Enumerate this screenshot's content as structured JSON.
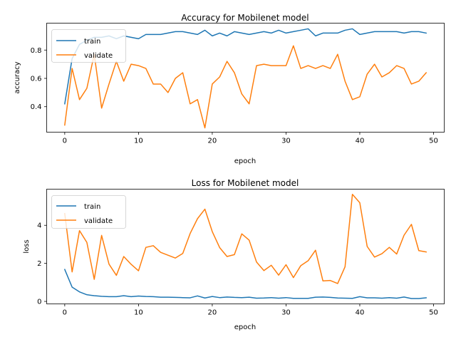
{
  "chart_data": [
    {
      "type": "line",
      "title": "Accuracy for Mobilenet model",
      "xlabel": "epoch",
      "ylabel": "accuracy",
      "xlim": [
        -2.45,
        51.45
      ],
      "ylim": [
        0.22,
        0.99
      ],
      "xticks": [
        0,
        10,
        20,
        30,
        40,
        50
      ],
      "yticks": [
        0.4,
        0.6,
        0.8
      ],
      "ytick_labels": [
        "0.4",
        "0.6",
        "0.8"
      ],
      "legend": "top-left",
      "x": [
        0,
        1,
        2,
        3,
        4,
        5,
        6,
        7,
        8,
        9,
        10,
        11,
        12,
        13,
        14,
        15,
        16,
        17,
        18,
        19,
        20,
        21,
        22,
        23,
        24,
        25,
        26,
        27,
        28,
        29,
        30,
        31,
        32,
        33,
        34,
        35,
        36,
        37,
        38,
        39,
        40,
        41,
        42,
        43,
        44,
        45,
        46,
        47,
        48,
        49
      ],
      "series": [
        {
          "name": "train",
          "color": "#1f77b4",
          "values": [
            0.42,
            0.74,
            0.84,
            0.87,
            0.89,
            0.89,
            0.9,
            0.88,
            0.9,
            0.89,
            0.88,
            0.91,
            0.91,
            0.91,
            0.92,
            0.93,
            0.93,
            0.92,
            0.91,
            0.94,
            0.9,
            0.92,
            0.9,
            0.93,
            0.92,
            0.91,
            0.92,
            0.93,
            0.92,
            0.94,
            0.92,
            0.93,
            0.94,
            0.95,
            0.9,
            0.92,
            0.92,
            0.92,
            0.94,
            0.95,
            0.91,
            0.92,
            0.93,
            0.93,
            0.93,
            0.93,
            0.92,
            0.93,
            0.93,
            0.92
          ]
        },
        {
          "name": "validate",
          "color": "#ff7f0e",
          "values": [
            0.27,
            0.67,
            0.45,
            0.53,
            0.77,
            0.39,
            0.56,
            0.72,
            0.58,
            0.7,
            0.69,
            0.67,
            0.56,
            0.56,
            0.5,
            0.6,
            0.64,
            0.42,
            0.45,
            0.25,
            0.56,
            0.61,
            0.72,
            0.64,
            0.49,
            0.42,
            0.69,
            0.7,
            0.69,
            0.69,
            0.69,
            0.83,
            0.67,
            0.69,
            0.67,
            0.69,
            0.67,
            0.77,
            0.58,
            0.45,
            0.47,
            0.63,
            0.7,
            0.61,
            0.64,
            0.69,
            0.67,
            0.56,
            0.58,
            0.64
          ]
        }
      ]
    },
    {
      "type": "line",
      "title": "Loss for Mobilenet model",
      "xlabel": "epoch",
      "ylabel": "loss",
      "xlim": [
        -2.45,
        51.45
      ],
      "ylim": [
        -0.13,
        5.9
      ],
      "xticks": [
        0,
        10,
        20,
        30,
        40,
        50
      ],
      "yticks": [
        0,
        2,
        4
      ],
      "ytick_labels": [
        "0",
        "2",
        "4"
      ],
      "legend": "top-left",
      "x": [
        0,
        1,
        2,
        3,
        4,
        5,
        6,
        7,
        8,
        9,
        10,
        11,
        12,
        13,
        14,
        15,
        16,
        17,
        18,
        19,
        20,
        21,
        22,
        23,
        24,
        25,
        26,
        27,
        28,
        29,
        30,
        31,
        32,
        33,
        34,
        35,
        36,
        37,
        38,
        39,
        40,
        41,
        42,
        43,
        44,
        45,
        46,
        47,
        48,
        49
      ],
      "series": [
        {
          "name": "train",
          "color": "#1f77b4",
          "values": [
            1.68,
            0.75,
            0.5,
            0.35,
            0.3,
            0.27,
            0.25,
            0.25,
            0.3,
            0.25,
            0.28,
            0.26,
            0.25,
            0.22,
            0.22,
            0.21,
            0.2,
            0.19,
            0.29,
            0.18,
            0.26,
            0.2,
            0.23,
            0.21,
            0.2,
            0.22,
            0.17,
            0.18,
            0.2,
            0.17,
            0.2,
            0.16,
            0.16,
            0.16,
            0.22,
            0.23,
            0.21,
            0.18,
            0.17,
            0.16,
            0.25,
            0.19,
            0.19,
            0.17,
            0.2,
            0.17,
            0.23,
            0.15,
            0.15,
            0.19
          ]
        },
        {
          "name": "validate",
          "color": "#ff7f0e",
          "values": [
            4.62,
            1.55,
            3.72,
            3.1,
            1.16,
            3.47,
            1.96,
            1.37,
            2.36,
            1.95,
            1.61,
            2.84,
            2.93,
            2.58,
            2.43,
            2.28,
            2.52,
            3.57,
            4.35,
            4.85,
            3.67,
            2.83,
            2.36,
            2.46,
            3.55,
            3.22,
            2.07,
            1.62,
            1.9,
            1.38,
            1.93,
            1.25,
            1.88,
            2.14,
            2.69,
            1.08,
            1.1,
            0.94,
            1.82,
            5.63,
            5.19,
            2.89,
            2.33,
            2.51,
            2.84,
            2.49,
            3.48,
            4.05,
            2.67,
            2.6
          ]
        }
      ]
    }
  ]
}
